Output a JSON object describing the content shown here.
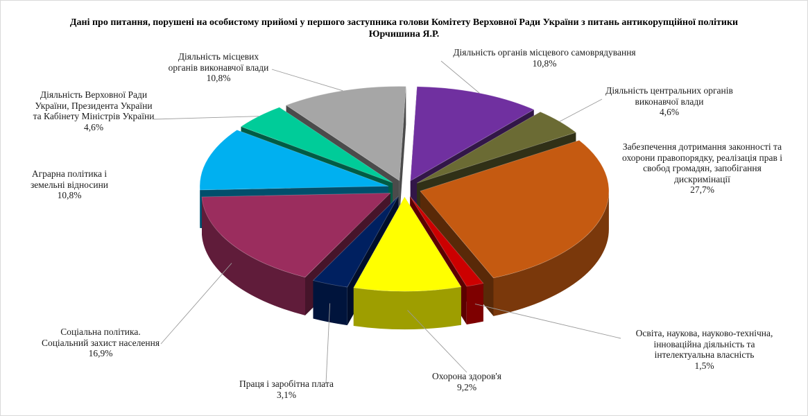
{
  "chart_data": {
    "type": "pie",
    "title": "Дані про питання, порушені на особистому прийомі у першого заступника голови Комітету Верховної Ради України з питань антикорупційної політики Юрчишина Я.Р.",
    "slices": [
      {
        "name": "Діяльність органів місцевого самоврядування",
        "value": 10.8,
        "label": "10,8%",
        "color": "#7030A0"
      },
      {
        "name": "Діяльність центральних органів виконавчої влади",
        "value": 4.6,
        "label": "4,6%",
        "color": "#6B6B34"
      },
      {
        "name": "Забезпечення дотримання законності та охорони правопорядку, реалізація прав і свобод громадян, запобігання дискримінації",
        "value": 27.7,
        "label": "27,7%",
        "color": "#C55A11"
      },
      {
        "name": "Освіта, наукова, науково-технічна, інноваційна діяльність та інтелектуальна власність",
        "value": 1.5,
        "label": "1,5%",
        "color": "#CC0000"
      },
      {
        "name": "Охорона здоров'я",
        "value": 9.2,
        "label": "9,2%",
        "color": "#FFFF00"
      },
      {
        "name": "Праця і заробітна плата",
        "value": 3.1,
        "label": "3,1%",
        "color": "#002060"
      },
      {
        "name": "Соціальна політика. Соціальний захист населення",
        "value": 16.9,
        "label": "16,9%",
        "color": "#9B2D5E"
      },
      {
        "name": "Аграрна політика і земельні відносини",
        "value": 10.8,
        "label": "10,8%",
        "color": "#00B0F0"
      },
      {
        "name": "Діяльність Верховної Ради України, Президента України та Кабінету Міністрів України",
        "value": 4.6,
        "label": "4,6%",
        "color": "#00CC99"
      },
      {
        "name": "Діяльність місцевих органів виконавчої влади",
        "value": 10.8,
        "label": "10,8%",
        "color": "#A6A6A6"
      }
    ]
  },
  "labels": {
    "s0": {
      "l1": "Діяльність органів місцевого самоврядування",
      "pct": "10,8%"
    },
    "s1": {
      "l1": "Діяльність центральних органів",
      "l2": "виконавчої влади",
      "pct": "4,6%"
    },
    "s2": {
      "l1": "Забезпечення дотримання законності та",
      "l2": "охорони правопорядку, реалізація  прав і",
      "l3": "свобод громадян, запобігання",
      "l4": "дискримінації",
      "pct": "27,7%"
    },
    "s3": {
      "l1": "Освіта, наукова, науково-технічна,",
      "l2": "інноваційна діяльність та",
      "l3": "інтелектуальна  власність",
      "pct": "1,5%"
    },
    "s4": {
      "l1": "Охорона здоров'я",
      "pct": "9,2%"
    },
    "s5": {
      "l1": "Праця і заробітна плата",
      "pct": "3,1%"
    },
    "s6": {
      "l1": "Соціальна політика.",
      "l2": "Соціальний захист населення",
      "pct": "16,9%"
    },
    "s7": {
      "l1": "Аграрна політика і",
      "l2": "земельні відносини",
      "pct": "10,8%"
    },
    "s8": {
      "l1": "Діяльність Верховної Ради",
      "l2": "України, Президента України",
      "l3": "та Кабінету Міністрів  України",
      "pct": "4,6%"
    },
    "s9": {
      "l1": "Діяльність місцевих",
      "l2": "органів виконавчої влади",
      "pct": "10,8%"
    }
  }
}
